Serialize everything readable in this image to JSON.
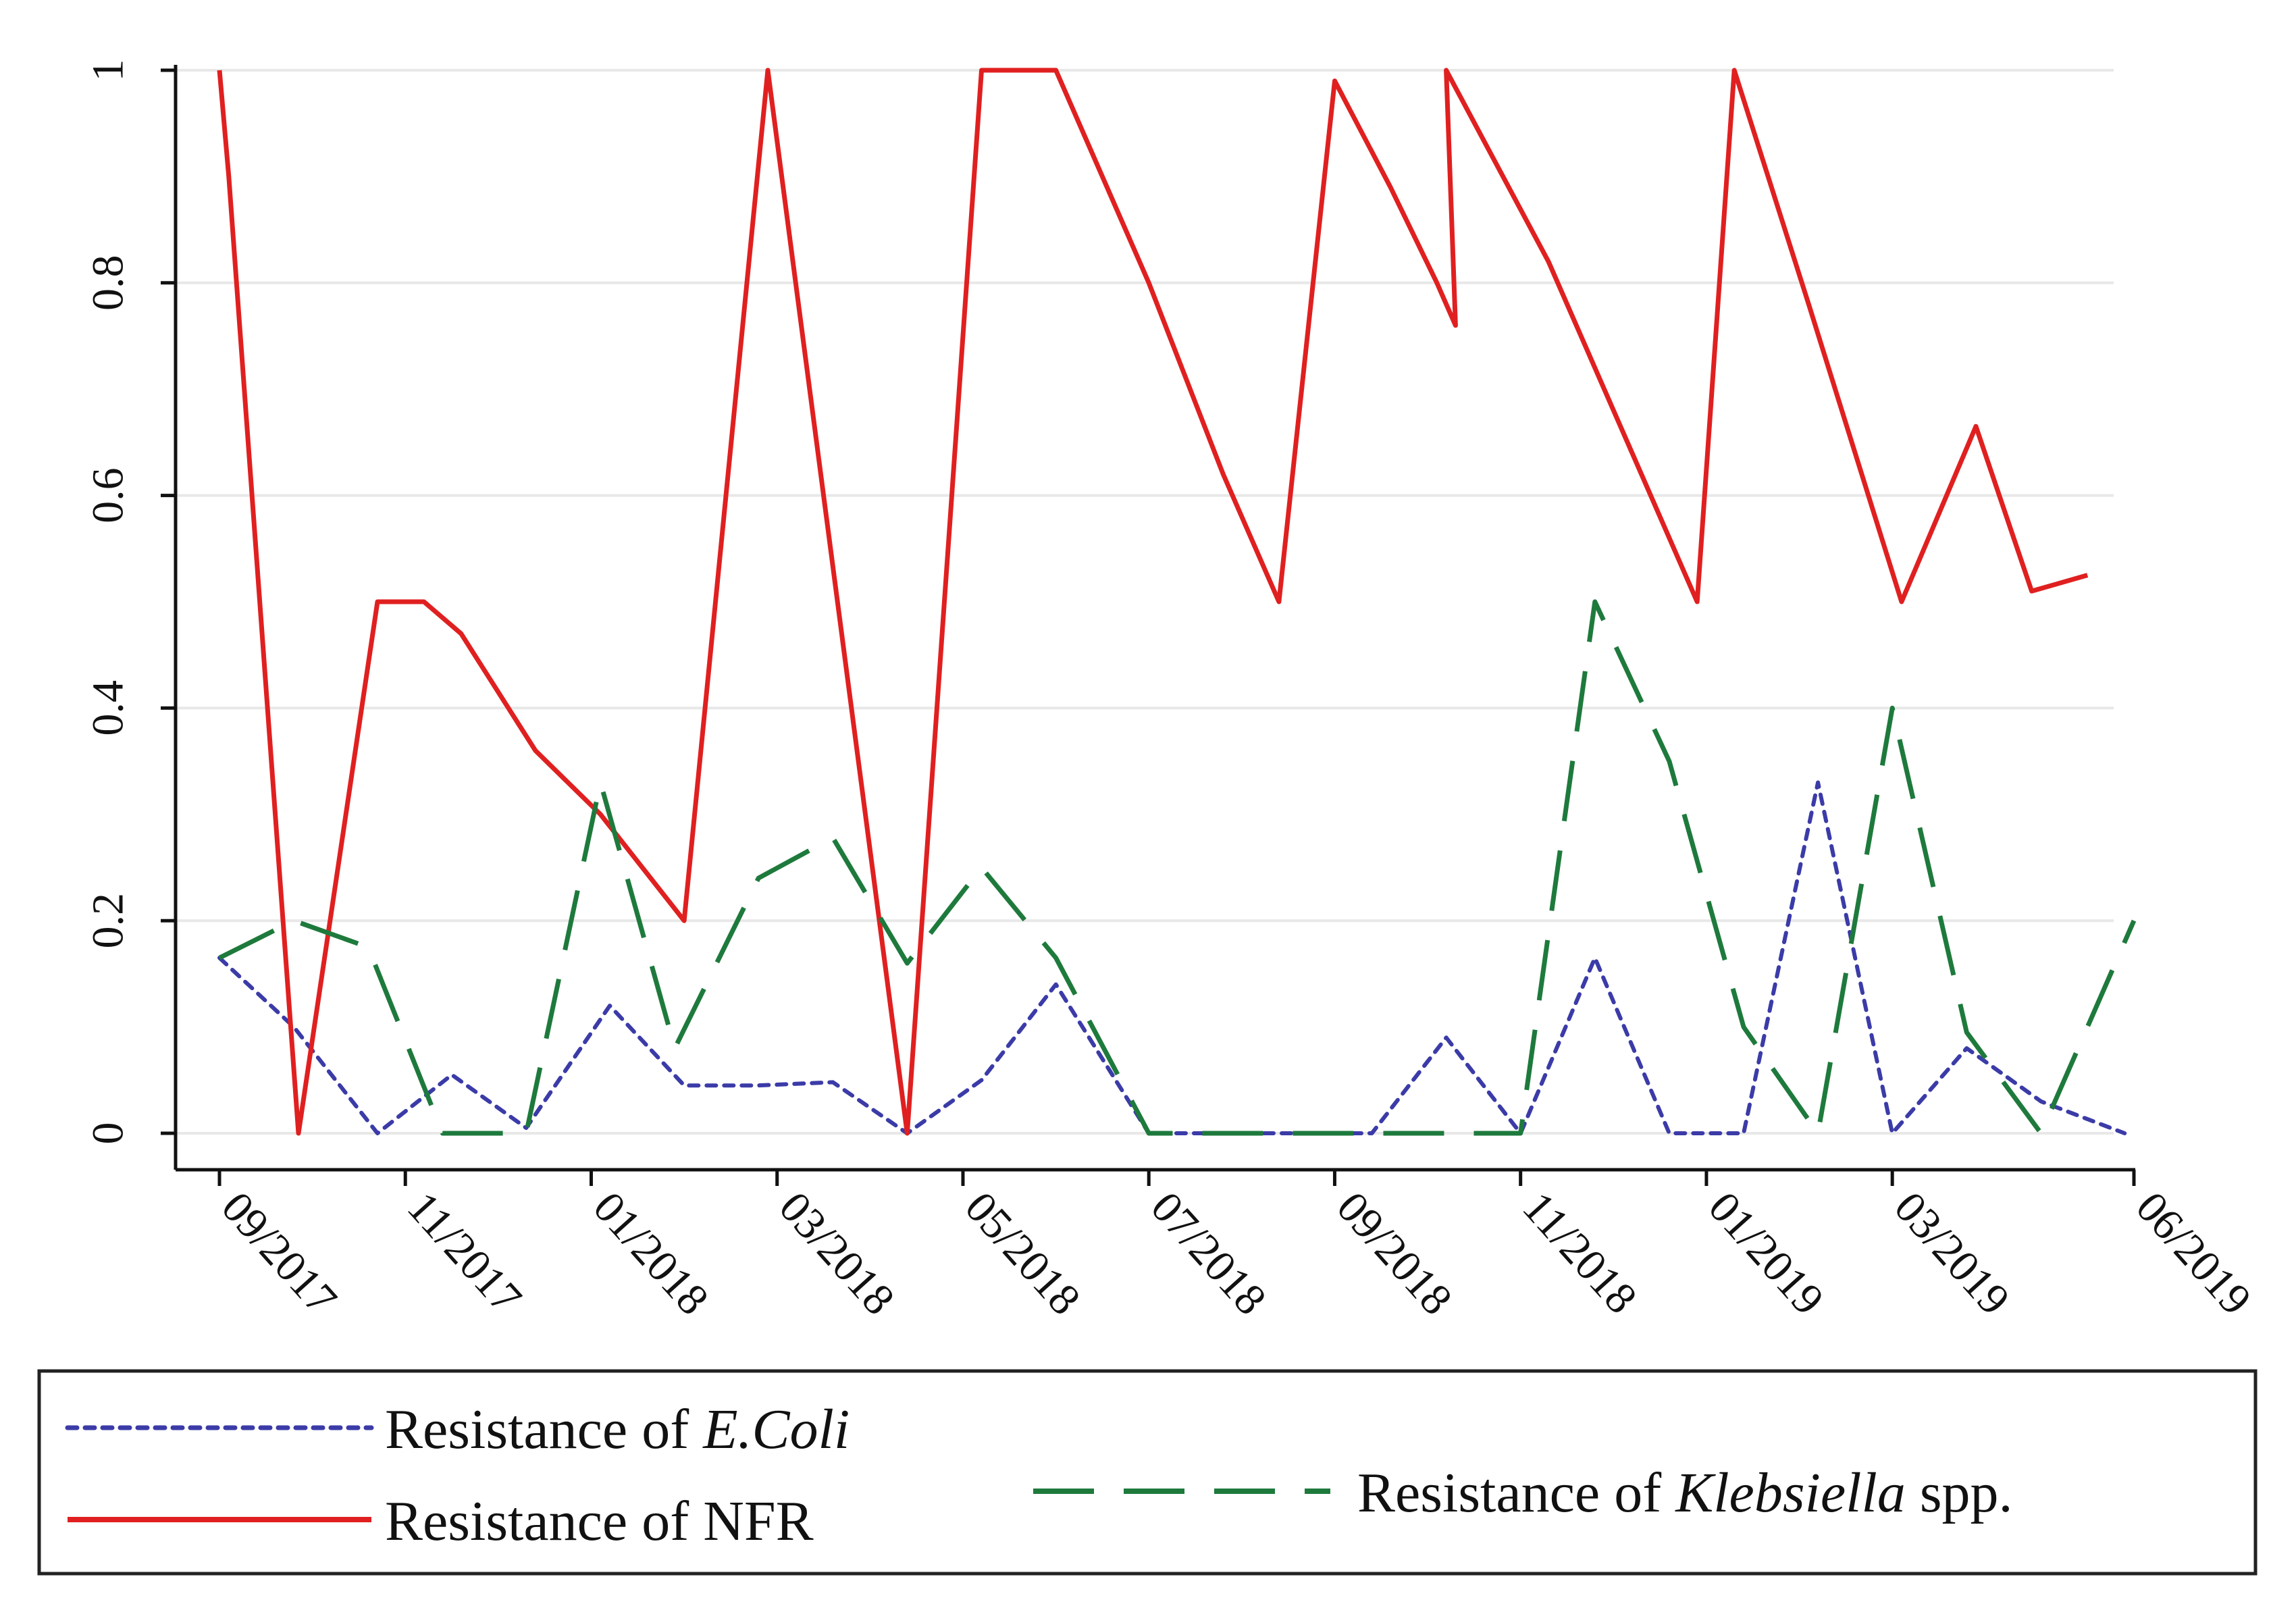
{
  "chart_data": {
    "type": "line",
    "title": "",
    "xlabel": "",
    "ylabel": "",
    "ylim": [
      0,
      1
    ],
    "yticks": [
      "0",
      "0.2",
      "0.4",
      "0.6",
      "0.8",
      "1"
    ],
    "xlim": [
      0,
      21.5
    ],
    "xticks": [
      {
        "label": "09/2017",
        "pos": 0
      },
      {
        "label": "11/2017",
        "pos": 2
      },
      {
        "label": "01/2018",
        "pos": 4
      },
      {
        "label": "03/2018",
        "pos": 6
      },
      {
        "label": "05/2018",
        "pos": 8
      },
      {
        "label": "07/2018",
        "pos": 10
      },
      {
        "label": "09/2018",
        "pos": 12
      },
      {
        "label": "11/2018",
        "pos": 14
      },
      {
        "label": "01/2019",
        "pos": 16
      },
      {
        "label": "03/2019",
        "pos": 18
      },
      {
        "label": "06/2019",
        "pos": 20.6
      }
    ],
    "grid": "horizontal",
    "legend_position": "bottom",
    "series": [
      {
        "name": "Resistance of E.Coli",
        "legend_prefix": "Resistance of ",
        "legend_italic": "E.Coli",
        "legend_suffix": "",
        "color": "#3b3ba8",
        "style": "dotted",
        "points": [
          [
            0,
            0.165
          ],
          [
            0.8,
            0.1
          ],
          [
            1.7,
            0.0
          ],
          [
            2.5,
            0.055
          ],
          [
            3.3,
            0.005
          ],
          [
            4.2,
            0.12
          ],
          [
            5.0,
            0.045
          ],
          [
            5.8,
            0.045
          ],
          [
            6.6,
            0.048
          ],
          [
            7.4,
            0.0
          ],
          [
            8.2,
            0.05
          ],
          [
            9.0,
            0.14
          ],
          [
            10.0,
            0.0
          ],
          [
            10.8,
            0.0
          ],
          [
            11.6,
            0.0
          ],
          [
            12.4,
            0.0
          ],
          [
            13.2,
            0.09
          ],
          [
            14.0,
            0.0
          ],
          [
            14.8,
            0.165
          ],
          [
            15.6,
            0.0
          ],
          [
            16.4,
            0.0
          ],
          [
            17.2,
            0.33
          ],
          [
            18.0,
            0.0
          ],
          [
            18.8,
            0.08
          ],
          [
            19.6,
            0.03
          ],
          [
            20.5,
            0.0
          ]
        ]
      },
      {
        "name": "Resistance of NFR",
        "legend_prefix": "Resistance of NFR",
        "legend_italic": "",
        "legend_suffix": "",
        "color": "#e02020",
        "style": "solid",
        "points": [
          [
            0,
            1.0
          ],
          [
            0.1,
            0.9
          ],
          [
            0.85,
            0.0
          ],
          [
            1.7,
            0.5
          ],
          [
            2.2,
            0.5
          ],
          [
            2.6,
            0.47
          ],
          [
            3.4,
            0.36
          ],
          [
            4.1,
            0.3
          ],
          [
            5.0,
            0.2
          ],
          [
            5.9,
            1.0
          ],
          [
            7.4,
            0.0
          ],
          [
            8.2,
            1.0
          ],
          [
            9.0,
            1.0
          ],
          [
            10.0,
            0.8
          ],
          [
            10.8,
            0.62
          ],
          [
            11.4,
            0.5
          ],
          [
            12.0,
            0.99
          ],
          [
            12.6,
            0.89
          ],
          [
            13.1,
            0.8
          ],
          [
            13.3,
            0.76
          ],
          [
            13.2,
            1.0
          ],
          [
            14.3,
            0.82
          ],
          [
            15.9,
            0.5
          ],
          [
            16.3,
            1.0
          ],
          [
            17.1,
            0.78
          ],
          [
            18.1,
            0.5
          ],
          [
            18.9,
            0.665
          ],
          [
            19.5,
            0.51
          ],
          [
            20.1,
            0.525
          ]
        ]
      },
      {
        "name": "Resistance of Klebsiella spp.",
        "legend_prefix": "Resistance of ",
        "legend_italic": "Klebsiella",
        "legend_suffix": " spp.",
        "color": "#1e7a3c",
        "style": "dashed",
        "points": [
          [
            0,
            0.165
          ],
          [
            0.8,
            0.2
          ],
          [
            1.6,
            0.175
          ],
          [
            2.4,
            0.0
          ],
          [
            3.3,
            0.0
          ],
          [
            4.1,
            0.33
          ],
          [
            4.9,
            0.08
          ],
          [
            5.8,
            0.24
          ],
          [
            6.6,
            0.278
          ],
          [
            7.4,
            0.16
          ],
          [
            8.2,
            0.25
          ],
          [
            9.0,
            0.165
          ],
          [
            10.0,
            0.0
          ],
          [
            10.8,
            0.0
          ],
          [
            11.6,
            0.0
          ],
          [
            12.4,
            0.0
          ],
          [
            13.2,
            0.0
          ],
          [
            14.0,
            0.0
          ],
          [
            14.8,
            0.5
          ],
          [
            15.6,
            0.35
          ],
          [
            16.4,
            0.1
          ],
          [
            17.2,
            0.0
          ],
          [
            18.0,
            0.4
          ],
          [
            18.8,
            0.095
          ],
          [
            19.6,
            0.0
          ],
          [
            20.6,
            0.2
          ]
        ]
      }
    ]
  }
}
